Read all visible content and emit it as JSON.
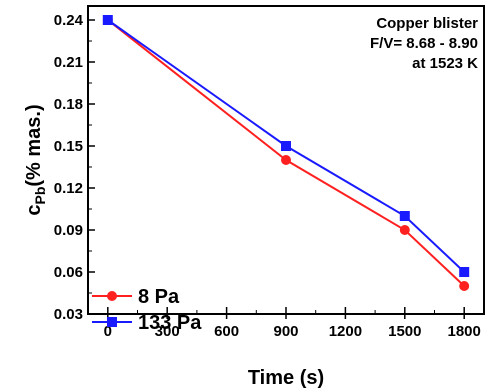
{
  "chart_data": {
    "type": "line",
    "xlabel": "Time (s)",
    "ylabel_main": "c",
    "ylabel_sub": "Pb",
    "ylabel_rest": "(% mas.)",
    "xlim": [
      -100,
      1900
    ],
    "ylim": [
      0.03,
      0.25
    ],
    "xticks": [
      0,
      300,
      600,
      900,
      1200,
      1500,
      1800
    ],
    "xtick_labels": [
      "0",
      "300",
      "600",
      "900",
      "1200",
      "1500",
      "1800"
    ],
    "yticks": [
      0.03,
      0.06,
      0.09,
      0.12,
      0.15,
      0.18,
      0.21,
      0.24
    ],
    "ytick_labels": [
      "0.03",
      "0.06",
      "0.09",
      "0.12",
      "0.15",
      "0.18",
      "0.21",
      "0.24"
    ],
    "grid": false,
    "legend_position": "bottom-left",
    "annotation": [
      "Copper blister",
      "F/V= 8.68 - 8.90",
      "at 1523 K"
    ],
    "series": [
      {
        "name": "8 Pa",
        "color": "#ff2020",
        "marker": "circle",
        "x": [
          0,
          900,
          1500,
          1800
        ],
        "y": [
          0.24,
          0.14,
          0.09,
          0.05
        ]
      },
      {
        "name": "133 Pa",
        "color": "#1a1aff",
        "marker": "square",
        "x": [
          0,
          900,
          1500,
          1800
        ],
        "y": [
          0.24,
          0.15,
          0.1,
          0.06
        ]
      }
    ]
  }
}
